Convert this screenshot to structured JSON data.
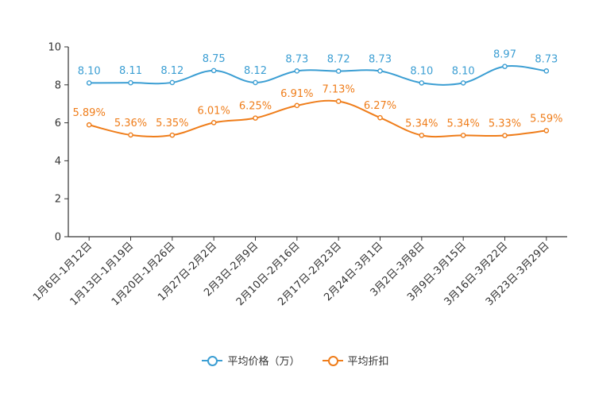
{
  "chart_data": {
    "type": "line",
    "title": "",
    "xlabel": "",
    "ylabel": "",
    "ylim": [
      0,
      10
    ],
    "yticks": [
      "0",
      "2",
      "4",
      "6",
      "8",
      "10"
    ],
    "categories": [
      "1月6日-1月12日",
      "1月13日-1月19日",
      "1月20日-1月26日",
      "1月27日-2月2日",
      "2月3日-2月9日",
      "2月10日-2月16日",
      "2月17日-2月23日",
      "2月24日-3月1日",
      "3月2日-3月8日",
      "3月9日-3月15日",
      "3月16日-3月22日",
      "3月23日-3月29日"
    ],
    "series": [
      {
        "name": "平均价格（万）",
        "color": "#3b9ed3",
        "values": [
          8.1,
          8.11,
          8.12,
          8.75,
          8.12,
          8.73,
          8.72,
          8.73,
          8.1,
          8.1,
          8.97,
          8.73
        ],
        "labels": [
          "8.10",
          "8.11",
          "8.12",
          "8.75",
          "8.12",
          "8.73",
          "8.72",
          "8.73",
          "8.10",
          "8.10",
          "8.97",
          "8.73"
        ]
      },
      {
        "name": "平均折扣",
        "color": "#ef7d1a",
        "values": [
          5.89,
          5.36,
          5.35,
          6.01,
          6.25,
          6.91,
          7.13,
          6.27,
          5.34,
          5.34,
          5.33,
          5.59
        ],
        "labels": [
          "5.89%",
          "5.36%",
          "5.35%",
          "6.01%",
          "6.25%",
          "6.91%",
          "7.13%",
          "6.27%",
          "5.34%",
          "5.34%",
          "5.33%",
          "5.59%"
        ]
      }
    ],
    "legend_position": "bottom-center"
  }
}
